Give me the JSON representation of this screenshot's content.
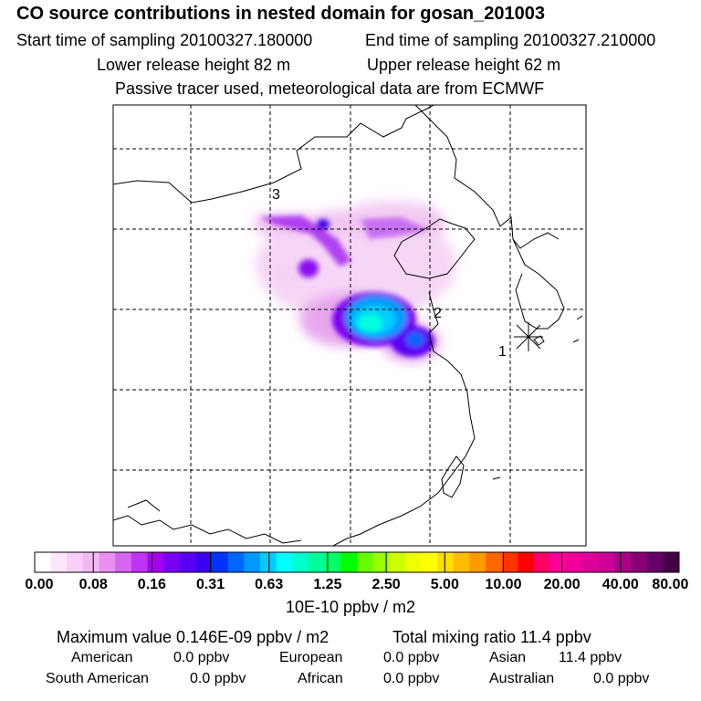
{
  "header": {
    "title": "CO  source contributions in nested domain for gosan_201003",
    "start_time": "Start time of sampling 20100327.180000",
    "end_time": "End time of sampling 20100327.210000",
    "lower_release": "Lower release height   82 m",
    "upper_release": "Upper release height   62 m",
    "tracer_note": "Passive tracer used, meteorological data are from ECMWF"
  },
  "map": {
    "labels": [
      "3",
      "2",
      "1"
    ],
    "receptor_marker": "asterisk-icon"
  },
  "colorbar": {
    "colors": [
      "#ffffff",
      "#fbe6fb",
      "#f7d0f7",
      "#f2b8f2",
      "#e98ff0",
      "#d466f2",
      "#bf33f2",
      "#a600f2",
      "#7a00f2",
      "#5a00f2",
      "#3a00f2",
      "#0033ff",
      "#0066ff",
      "#0099ff",
      "#00ccff",
      "#00ffff",
      "#00ffcc",
      "#00ff99",
      "#00ff66",
      "#00ff00",
      "#66ff00",
      "#99ff00",
      "#ccff00",
      "#eeff00",
      "#ffff00",
      "#ffdd00",
      "#ffbb00",
      "#ff9900",
      "#ff6600",
      "#ff3300",
      "#ff0000",
      "#ff0066",
      "#ff0099",
      "#ee0099",
      "#dd0099",
      "#cc0099",
      "#aa0088",
      "#880077",
      "#660066",
      "#440044"
    ],
    "ticks": [
      "0.00",
      "0.08",
      "0.16",
      "0.31",
      "0.63",
      "1.25",
      "2.50",
      "5.00",
      "10.00",
      "20.00",
      "40.00",
      "80.00"
    ],
    "unit": "10E-10 ppbv / m2"
  },
  "stats": {
    "max_value": "Maximum value  0.146E-09 ppbv / m2",
    "total_mixing": "Total mixing ratio       11.4 ppbv",
    "regions": [
      {
        "name": "American",
        "value": "0.0 ppbv"
      },
      {
        "name": "European",
        "value": "0.0 ppbv"
      },
      {
        "name": "Asian",
        "value": "11.4 ppbv"
      },
      {
        "name": "South American",
        "value": "0.0 ppbv"
      },
      {
        "name": "African",
        "value": "0.0 ppbv"
      },
      {
        "name": "Australian",
        "value": "0.0 ppbv"
      }
    ]
  }
}
